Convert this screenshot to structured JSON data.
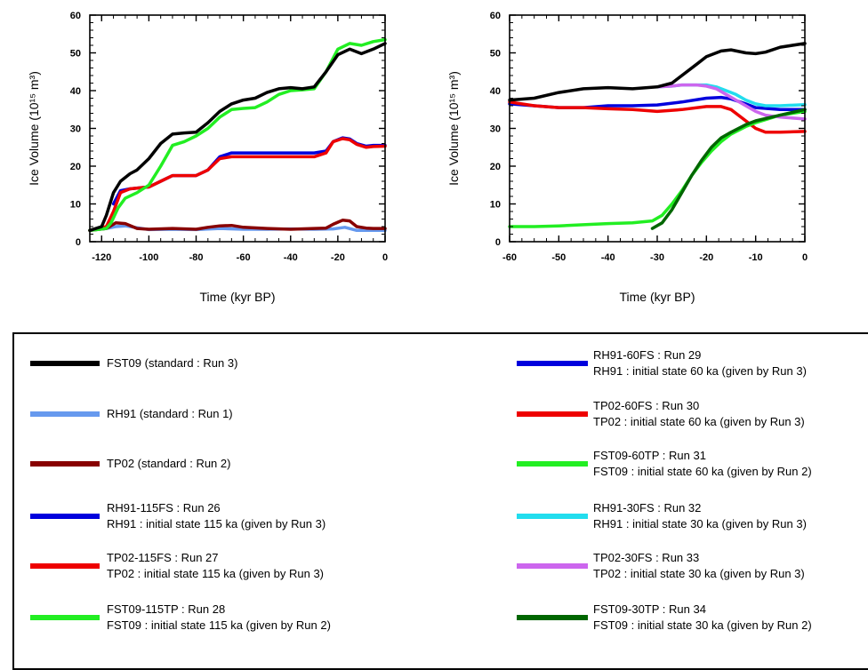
{
  "chart_data": [
    {
      "type": "line",
      "xlabel": "Time (kyr BP)",
      "ylabel": "Ice Volume (10¹⁵ m³)",
      "xlim": [
        -125,
        0
      ],
      "ylim": [
        0,
        60
      ],
      "xticks": [
        -120,
        -100,
        -80,
        -60,
        -40,
        -20,
        0
      ],
      "yticks": [
        0,
        10,
        20,
        30,
        40,
        50,
        60
      ],
      "series": [
        {
          "name": "RH91 (standard : Run 1)",
          "color": "#6699ee",
          "x": [
            -125,
            -118,
            -114,
            -110,
            -100,
            -90,
            -80,
            -70,
            -60,
            -50,
            -40,
            -30,
            -22,
            -17,
            -12,
            -5,
            0
          ],
          "y": [
            3,
            3.5,
            4,
            4.2,
            3.2,
            3.3,
            3.2,
            3.5,
            3.3,
            3.3,
            3.4,
            3.3,
            3.4,
            3.8,
            3.0,
            3.0,
            3.0
          ]
        },
        {
          "name": "TP02 (standard : Run 2)",
          "color": "#880000",
          "x": [
            -125,
            -118,
            -114,
            -110,
            -105,
            -100,
            -90,
            -80,
            -75,
            -70,
            -65,
            -60,
            -50,
            -40,
            -30,
            -25,
            -22,
            -18,
            -15,
            -12,
            -8,
            -5,
            0
          ],
          "y": [
            3,
            3.5,
            5,
            4.8,
            3.5,
            3.3,
            3.5,
            3.3,
            3.8,
            4.2,
            4.3,
            3.8,
            3.5,
            3.3,
            3.5,
            3.6,
            4.6,
            5.7,
            5.5,
            4.0,
            3.6,
            3.5,
            3.5
          ]
        },
        {
          "name": "RH91-115FS : Run 26",
          "color": "#0000dd",
          "x": [
            -115,
            -112,
            -108,
            -100,
            -95,
            -90,
            -85,
            -80,
            -75,
            -70,
            -65,
            -60,
            -50,
            -40,
            -30,
            -25,
            -22,
            -18,
            -15,
            -12,
            -8,
            -5,
            0
          ],
          "y": [
            10,
            13.5,
            14,
            14.5,
            16,
            17.5,
            17.5,
            17.5,
            19,
            22.5,
            23.5,
            23.5,
            23.5,
            23.5,
            23.5,
            24,
            26.5,
            27.5,
            27.2,
            26,
            25.3,
            25.5,
            25.5
          ]
        },
        {
          "name": "TP02-115FS : Run 27",
          "color": "#ee0000",
          "x": [
            -125,
            -118,
            -115,
            -112,
            -108,
            -100,
            -95,
            -90,
            -85,
            -80,
            -75,
            -70,
            -65,
            -60,
            -50,
            -40,
            -30,
            -25,
            -22,
            -18,
            -15,
            -12,
            -8,
            -5,
            0
          ],
          "y": [
            3,
            4,
            8,
            13,
            14,
            14.5,
            16,
            17.5,
            17.5,
            17.5,
            19,
            22,
            22.5,
            22.5,
            22.5,
            22.5,
            22.5,
            23.5,
            26.5,
            27.3,
            27,
            25.8,
            25,
            25.2,
            25.3
          ]
        },
        {
          "name": "FST09-115TP : Run 28",
          "color": "#22ee22",
          "x": [
            -125,
            -118,
            -116,
            -113,
            -110,
            -105,
            -100,
            -95,
            -90,
            -85,
            -80,
            -75,
            -70,
            -65,
            -60,
            -55,
            -50,
            -45,
            -40,
            -35,
            -30,
            -25,
            -20,
            -15,
            -10,
            -5,
            0
          ],
          "y": [
            3,
            3.5,
            5,
            9,
            11.5,
            13,
            15,
            20,
            25.5,
            26.5,
            28,
            30,
            33,
            35,
            35.3,
            35.5,
            37,
            39,
            40,
            40.2,
            40.5,
            45,
            51,
            52.5,
            52,
            53,
            53.5
          ]
        },
        {
          "name": "FST09 (standard : Run 3)",
          "color": "#000000",
          "x": [
            -125,
            -120,
            -118,
            -115,
            -112,
            -108,
            -105,
            -100,
            -95,
            -90,
            -85,
            -80,
            -75,
            -70,
            -65,
            -60,
            -55,
            -50,
            -45,
            -40,
            -35,
            -30,
            -25,
            -20,
            -15,
            -10,
            -5,
            0
          ],
          "y": [
            3,
            4,
            7,
            13,
            16,
            18,
            19,
            22,
            26,
            28.5,
            28.8,
            29,
            31.5,
            34.5,
            36.5,
            37.5,
            38,
            39.5,
            40.5,
            40.8,
            40.5,
            41,
            45,
            49.5,
            51,
            49.8,
            51,
            52.5
          ]
        }
      ]
    },
    {
      "type": "line",
      "xlabel": "Time (kyr BP)",
      "ylabel": "Ice Volume (10¹⁵ m³)",
      "xlim": [
        -60,
        0
      ],
      "ylim": [
        0,
        60
      ],
      "xticks": [
        -60,
        -50,
        -40,
        -30,
        -20,
        -10,
        0
      ],
      "yticks": [
        0,
        10,
        20,
        30,
        40,
        50,
        60
      ],
      "series": [
        {
          "name": "RH91-60FS : Run 29",
          "color": "#0000dd",
          "x": [
            -60,
            -55,
            -50,
            -45,
            -40,
            -35,
            -30,
            -25,
            -20,
            -17,
            -15,
            -12,
            -10,
            -5,
            0
          ],
          "y": [
            36.5,
            36,
            35.5,
            35.5,
            36,
            36,
            36.2,
            37,
            38,
            38.2,
            37.8,
            36.5,
            35.5,
            35,
            35
          ]
        },
        {
          "name": "TP02-60FS : Run 30",
          "color": "#ee0000",
          "x": [
            -60,
            -55,
            -50,
            -45,
            -40,
            -35,
            -30,
            -25,
            -20,
            -17,
            -15,
            -12,
            -10,
            -8,
            -5,
            0
          ],
          "y": [
            37,
            36,
            35.5,
            35.5,
            35.2,
            35,
            34.5,
            35,
            35.8,
            35.8,
            35,
            32,
            30,
            29,
            29,
            29.2
          ]
        },
        {
          "name": "FST09-60TP : Run 31",
          "color": "#22ee22",
          "x": [
            -60,
            -55,
            -50,
            -45,
            -40,
            -35,
            -31,
            -29,
            -27,
            -25,
            -23,
            -21,
            -19,
            -17,
            -15,
            -12,
            -10,
            -5,
            0
          ],
          "y": [
            4,
            4,
            4.2,
            4.5,
            4.8,
            5,
            5.5,
            7,
            10,
            13.5,
            17.5,
            21,
            24,
            26.5,
            28.5,
            30.5,
            31.5,
            33.5,
            34.5
          ]
        },
        {
          "name": "RH91-30FS : Run 32",
          "color": "#22ddee",
          "x": [
            -30,
            -27,
            -25,
            -22,
            -20,
            -18,
            -16,
            -14,
            -12,
            -10,
            -8,
            -5,
            0
          ],
          "y": [
            41,
            41.2,
            41.5,
            41.5,
            41.5,
            41,
            40,
            39,
            37.5,
            36.5,
            36,
            36,
            36.3
          ]
        },
        {
          "name": "TP02-30FS : Run 33",
          "color": "#cc66ee",
          "x": [
            -30,
            -27,
            -25,
            -22,
            -20,
            -18,
            -16,
            -14,
            -12,
            -10,
            -8,
            -5,
            0
          ],
          "y": [
            41,
            41.2,
            41.5,
            41.5,
            41.2,
            40.5,
            39,
            37.5,
            36,
            34.5,
            33.5,
            33,
            32.5
          ]
        },
        {
          "name": "FST09-30TP : Run 34",
          "color": "#006600",
          "x": [
            -31,
            -29,
            -27,
            -25,
            -23,
            -21,
            -19,
            -17,
            -15,
            -12,
            -10,
            -5,
            0
          ],
          "y": [
            3.5,
            5,
            8.5,
            13,
            17.5,
            21.5,
            25,
            27.5,
            29,
            31,
            32,
            33.5,
            35
          ]
        },
        {
          "name": "FST09 (standard : Run 3)",
          "color": "#000000",
          "x": [
            -60,
            -55,
            -50,
            -45,
            -40,
            -35,
            -30,
            -27,
            -25,
            -22,
            -20,
            -17,
            -15,
            -12,
            -10,
            -8,
            -5,
            0
          ],
          "y": [
            37.5,
            38,
            39.5,
            40.5,
            40.8,
            40.5,
            41,
            42,
            44,
            47,
            49,
            50.5,
            50.8,
            50,
            49.8,
            50.2,
            51.5,
            52.5
          ]
        }
      ]
    }
  ],
  "legend": [
    {
      "line1": "FST09 (standard : Run 3)",
      "line2": "",
      "color": "#000000"
    },
    {
      "line1": "RH91 (standard : Run 1)",
      "line2": "",
      "color": "#6699ee"
    },
    {
      "line1": "TP02 (standard : Run 2)",
      "line2": "",
      "color": "#880000"
    },
    {
      "line1": "RH91-115FS  : Run 26",
      "line2": "RH91 : initial state 115 ka (given by Run 3)",
      "color": "#0000dd"
    },
    {
      "line1": "TP02-115FS  : Run 27",
      "line2": "TP02 : initial state 115 ka (given by Run 3)",
      "color": "#ee0000"
    },
    {
      "line1": "FST09-115TP  : Run 28",
      "line2": "FST09 : initial state 115 ka (given by Run 2)",
      "color": "#22ee22"
    },
    {
      "line1": "RH91-60FS  : Run 29",
      "line2": "RH91 : initial state 60 ka (given by Run 3)",
      "color": "#0000dd"
    },
    {
      "line1": "TP02-60FS  : Run 30",
      "line2": "TP02 : initial state 60 ka (given by Run 3)",
      "color": "#ee0000"
    },
    {
      "line1": "FST09-60TP  : Run 31",
      "line2": "FST09 : initial state 60 ka (given by Run 2)",
      "color": "#22ee22"
    },
    {
      "line1": "RH91-30FS  : Run 32",
      "line2": "RH91 : initial state 30 ka (given by Run 3)",
      "color": "#22ddee"
    },
    {
      "line1": "TP02-30FS  : Run 33",
      "line2": "TP02 : initial state 30 ka (given by Run 3)",
      "color": "#cc66ee"
    },
    {
      "line1": "FST09-30TP  : Run 34",
      "line2": "FST09 : initial state 30 ka (given by Run 2)",
      "color": "#006600"
    }
  ]
}
